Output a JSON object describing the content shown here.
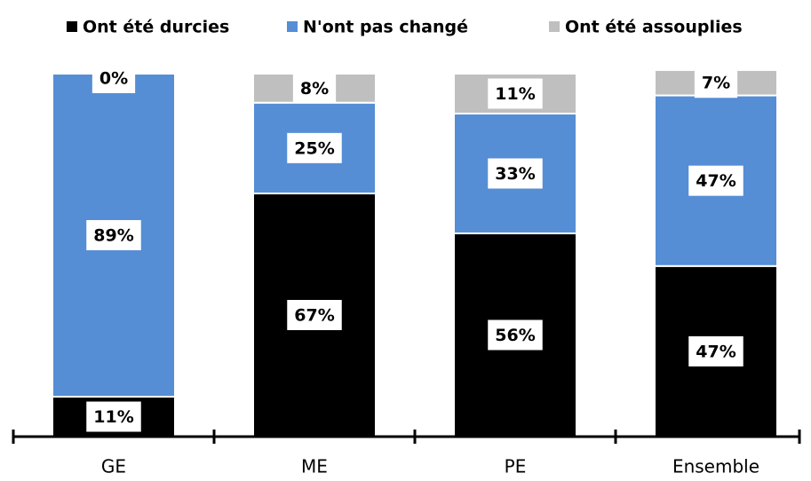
{
  "chart_data": {
    "type": "stacked_bar",
    "categories": [
      "GE",
      "ME",
      "PE",
      "Ensemble"
    ],
    "series": [
      {
        "name": "Ont été durcies",
        "color": "#000000",
        "values": [
          11,
          67,
          56,
          47
        ],
        "value_labels": [
          "11%",
          "67%",
          "56%",
          "47%"
        ]
      },
      {
        "name": "N'ont pas changé",
        "color": "#558ed5",
        "values": [
          89,
          25,
          33,
          47
        ],
        "value_labels": [
          "89%",
          "25%",
          "33%",
          "47%"
        ]
      },
      {
        "name": "Ont été assouplies",
        "color": "#bfbfbf",
        "values": [
          0,
          8,
          11,
          7
        ],
        "value_labels": [
          "0%",
          "8%",
          "11%",
          "7%"
        ]
      }
    ],
    "ylim": [
      0,
      100
    ],
    "legend": "top"
  }
}
